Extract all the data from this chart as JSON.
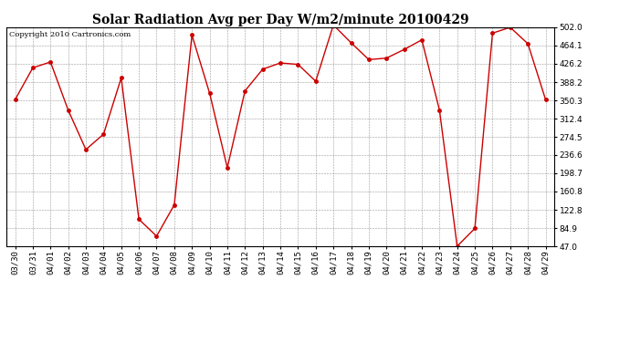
{
  "title": "Solar Radiation Avg per Day W/m2/minute 20100429",
  "copyright": "Copyright 2010 Cartronics.com",
  "dates": [
    "03/30",
    "03/31",
    "04/01",
    "04/02",
    "04/03",
    "04/04",
    "04/05",
    "04/06",
    "04/07",
    "04/08",
    "04/09",
    "04/10",
    "04/11",
    "04/12",
    "04/13",
    "04/14",
    "04/15",
    "04/16",
    "04/17",
    "04/18",
    "04/19",
    "04/20",
    "04/21",
    "04/22",
    "04/23",
    "04/24",
    "04/25",
    "04/26",
    "04/27",
    "04/28",
    "04/29"
  ],
  "values": [
    352,
    418,
    430,
    330,
    248,
    280,
    397,
    103,
    68,
    133,
    486,
    365,
    210,
    370,
    415,
    428,
    425,
    390,
    507,
    470,
    435,
    438,
    456,
    476,
    330,
    47,
    84,
    490,
    502,
    468,
    352
  ],
  "line_color": "#cc0000",
  "marker": "o",
  "marker_size": 2.5,
  "bg_color": "#ffffff",
  "grid_color": "#999999",
  "ylim_min": 47.0,
  "ylim_max": 502.0,
  "ytick_values": [
    47.0,
    84.9,
    122.8,
    160.8,
    198.7,
    236.6,
    274.5,
    312.4,
    350.3,
    388.2,
    426.2,
    464.1,
    502.0
  ],
  "title_fontsize": 10,
  "copyright_fontsize": 6,
  "tick_fontsize": 6.5
}
